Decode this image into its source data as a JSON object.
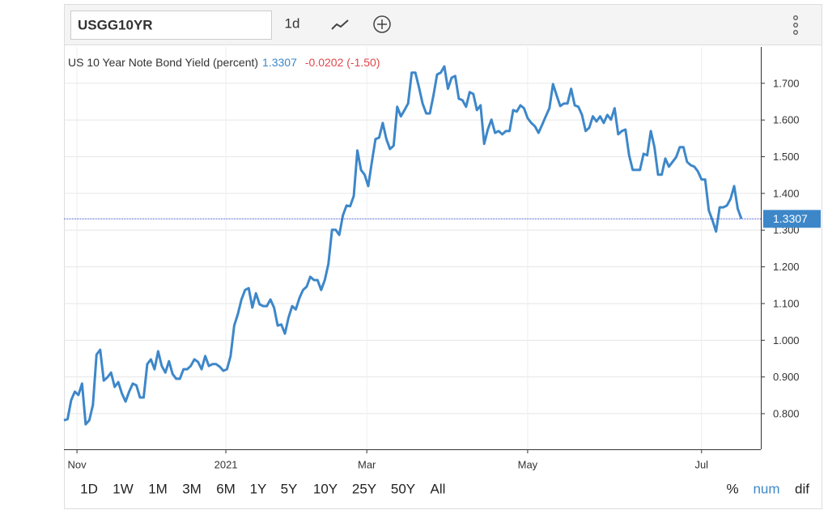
{
  "toolbar": {
    "symbol": "USGG10YR",
    "interval": "1d"
  },
  "header": {
    "name": "US 10 Year Note Bond Yield (percent)",
    "change": "-0.0202 (-1.50)"
  },
  "chart_data": {
    "type": "line",
    "color": "#3d87c9",
    "grid": true,
    "last_value": 1.3307,
    "values": [
      0.782,
      0.785,
      0.837,
      0.86,
      0.851,
      0.882,
      0.771,
      0.782,
      0.824,
      0.961,
      0.974,
      0.89,
      0.899,
      0.912,
      0.873,
      0.886,
      0.855,
      0.833,
      0.86,
      0.882,
      0.877,
      0.844,
      0.844,
      0.935,
      0.948,
      0.921,
      0.97,
      0.93,
      0.912,
      0.943,
      0.908,
      0.895,
      0.895,
      0.921,
      0.921,
      0.93,
      0.948,
      0.941,
      0.921,
      0.957,
      0.93,
      0.935,
      0.935,
      0.928,
      0.917,
      0.921,
      0.957,
      1.04,
      1.071,
      1.111,
      1.137,
      1.142,
      1.089,
      1.128,
      1.098,
      1.093,
      1.093,
      1.111,
      1.089,
      1.04,
      1.043,
      1.018,
      1.062,
      1.093,
      1.084,
      1.115,
      1.137,
      1.146,
      1.173,
      1.164,
      1.164,
      1.137,
      1.164,
      1.208,
      1.301,
      1.301,
      1.287,
      1.34,
      1.367,
      1.365,
      1.393,
      1.517,
      1.464,
      1.451,
      1.42,
      1.486,
      1.548,
      1.552,
      1.592,
      1.548,
      1.521,
      1.53,
      1.636,
      1.61,
      1.627,
      1.645,
      1.729,
      1.729,
      1.689,
      1.645,
      1.618,
      1.618,
      1.667,
      1.724,
      1.729,
      1.746,
      1.685,
      1.715,
      1.72,
      1.658,
      1.654,
      1.636,
      1.676,
      1.671,
      1.627,
      1.64,
      1.535,
      1.574,
      1.601,
      1.565,
      1.57,
      1.561,
      1.57,
      1.57,
      1.627,
      1.623,
      1.64,
      1.632,
      1.605,
      1.592,
      1.583,
      1.565,
      1.587,
      1.61,
      1.632,
      1.698,
      1.667,
      1.638,
      1.645,
      1.645,
      1.685,
      1.64,
      1.636,
      1.614,
      1.57,
      1.579,
      1.61,
      1.596,
      1.61,
      1.592,
      1.614,
      1.601,
      1.632,
      1.561,
      1.57,
      1.574,
      1.504,
      1.464,
      1.464,
      1.464,
      1.508,
      1.504,
      1.57,
      1.526,
      1.451,
      1.451,
      1.495,
      1.473,
      1.486,
      1.499,
      1.526,
      1.526,
      1.486,
      1.477,
      1.473,
      1.46,
      1.438,
      1.438,
      1.354,
      1.327,
      1.296,
      1.362,
      1.362,
      1.367,
      1.385,
      1.42,
      1.358,
      1.331
    ],
    "xlim": [
      0,
      187
    ],
    "xticks": [
      {
        "value": 3.6,
        "label": "Nov"
      },
      {
        "value": 44.7,
        "label": "2021"
      },
      {
        "value": 83.6,
        "label": "Mar"
      },
      {
        "value": 128,
        "label": "May"
      },
      {
        "value": 176,
        "label": "Jul"
      }
    ],
    "ylim": [
      0.703,
      1.799
    ],
    "yticks": [
      {
        "value": 0.8,
        "label": "0.800"
      },
      {
        "value": 0.9,
        "label": "0.900"
      },
      {
        "value": 1.0,
        "label": "1.000"
      },
      {
        "value": 1.1,
        "label": "1.100"
      },
      {
        "value": 1.2,
        "label": "1.200"
      },
      {
        "value": 1.3,
        "label": "1.300"
      },
      {
        "value": 1.4,
        "label": "1.400"
      },
      {
        "value": 1.5,
        "label": "1.500"
      },
      {
        "value": 1.6,
        "label": "1.600"
      },
      {
        "value": 1.7,
        "label": "1.700"
      }
    ]
  },
  "range_buttons": [
    "1D",
    "1W",
    "1M",
    "3M",
    "6M",
    "1Y",
    "5Y",
    "10Y",
    "25Y",
    "50Y",
    "All"
  ],
  "units": [
    "%",
    "num",
    "dif"
  ]
}
